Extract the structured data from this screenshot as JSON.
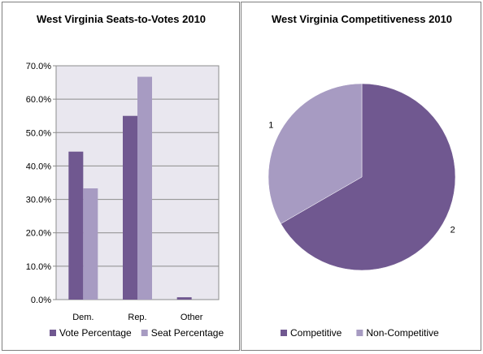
{
  "chart_data": [
    {
      "type": "bar",
      "title": "West Virginia Seats-to-Votes 2010",
      "categories": [
        "Dem.",
        "Rep.",
        "Other"
      ],
      "series": [
        {
          "name": "Vote Percentage",
          "values": [
            44.3,
            55.0,
            0.7
          ],
          "color": "#705890"
        },
        {
          "name": "Seat Percentage",
          "values": [
            33.3,
            66.7,
            0.0
          ],
          "color": "#a79bc2"
        }
      ],
      "y_ticks": [
        "0.0%",
        "10.0%",
        "20.0%",
        "30.0%",
        "40.0%",
        "50.0%",
        "60.0%",
        "70.0%"
      ],
      "ylim": [
        0,
        70
      ],
      "grid": true,
      "plot_background": "#e9e7ef",
      "legend": "bottom"
    },
    {
      "type": "pie",
      "title": "West Virginia Competitiveness 2010",
      "categories": [
        "Competitive",
        "Non-Competitive"
      ],
      "values": [
        2,
        1
      ],
      "data_labels": [
        "2",
        "1"
      ],
      "colors": [
        "#705890",
        "#a79bc2"
      ],
      "legend": "bottom"
    }
  ]
}
